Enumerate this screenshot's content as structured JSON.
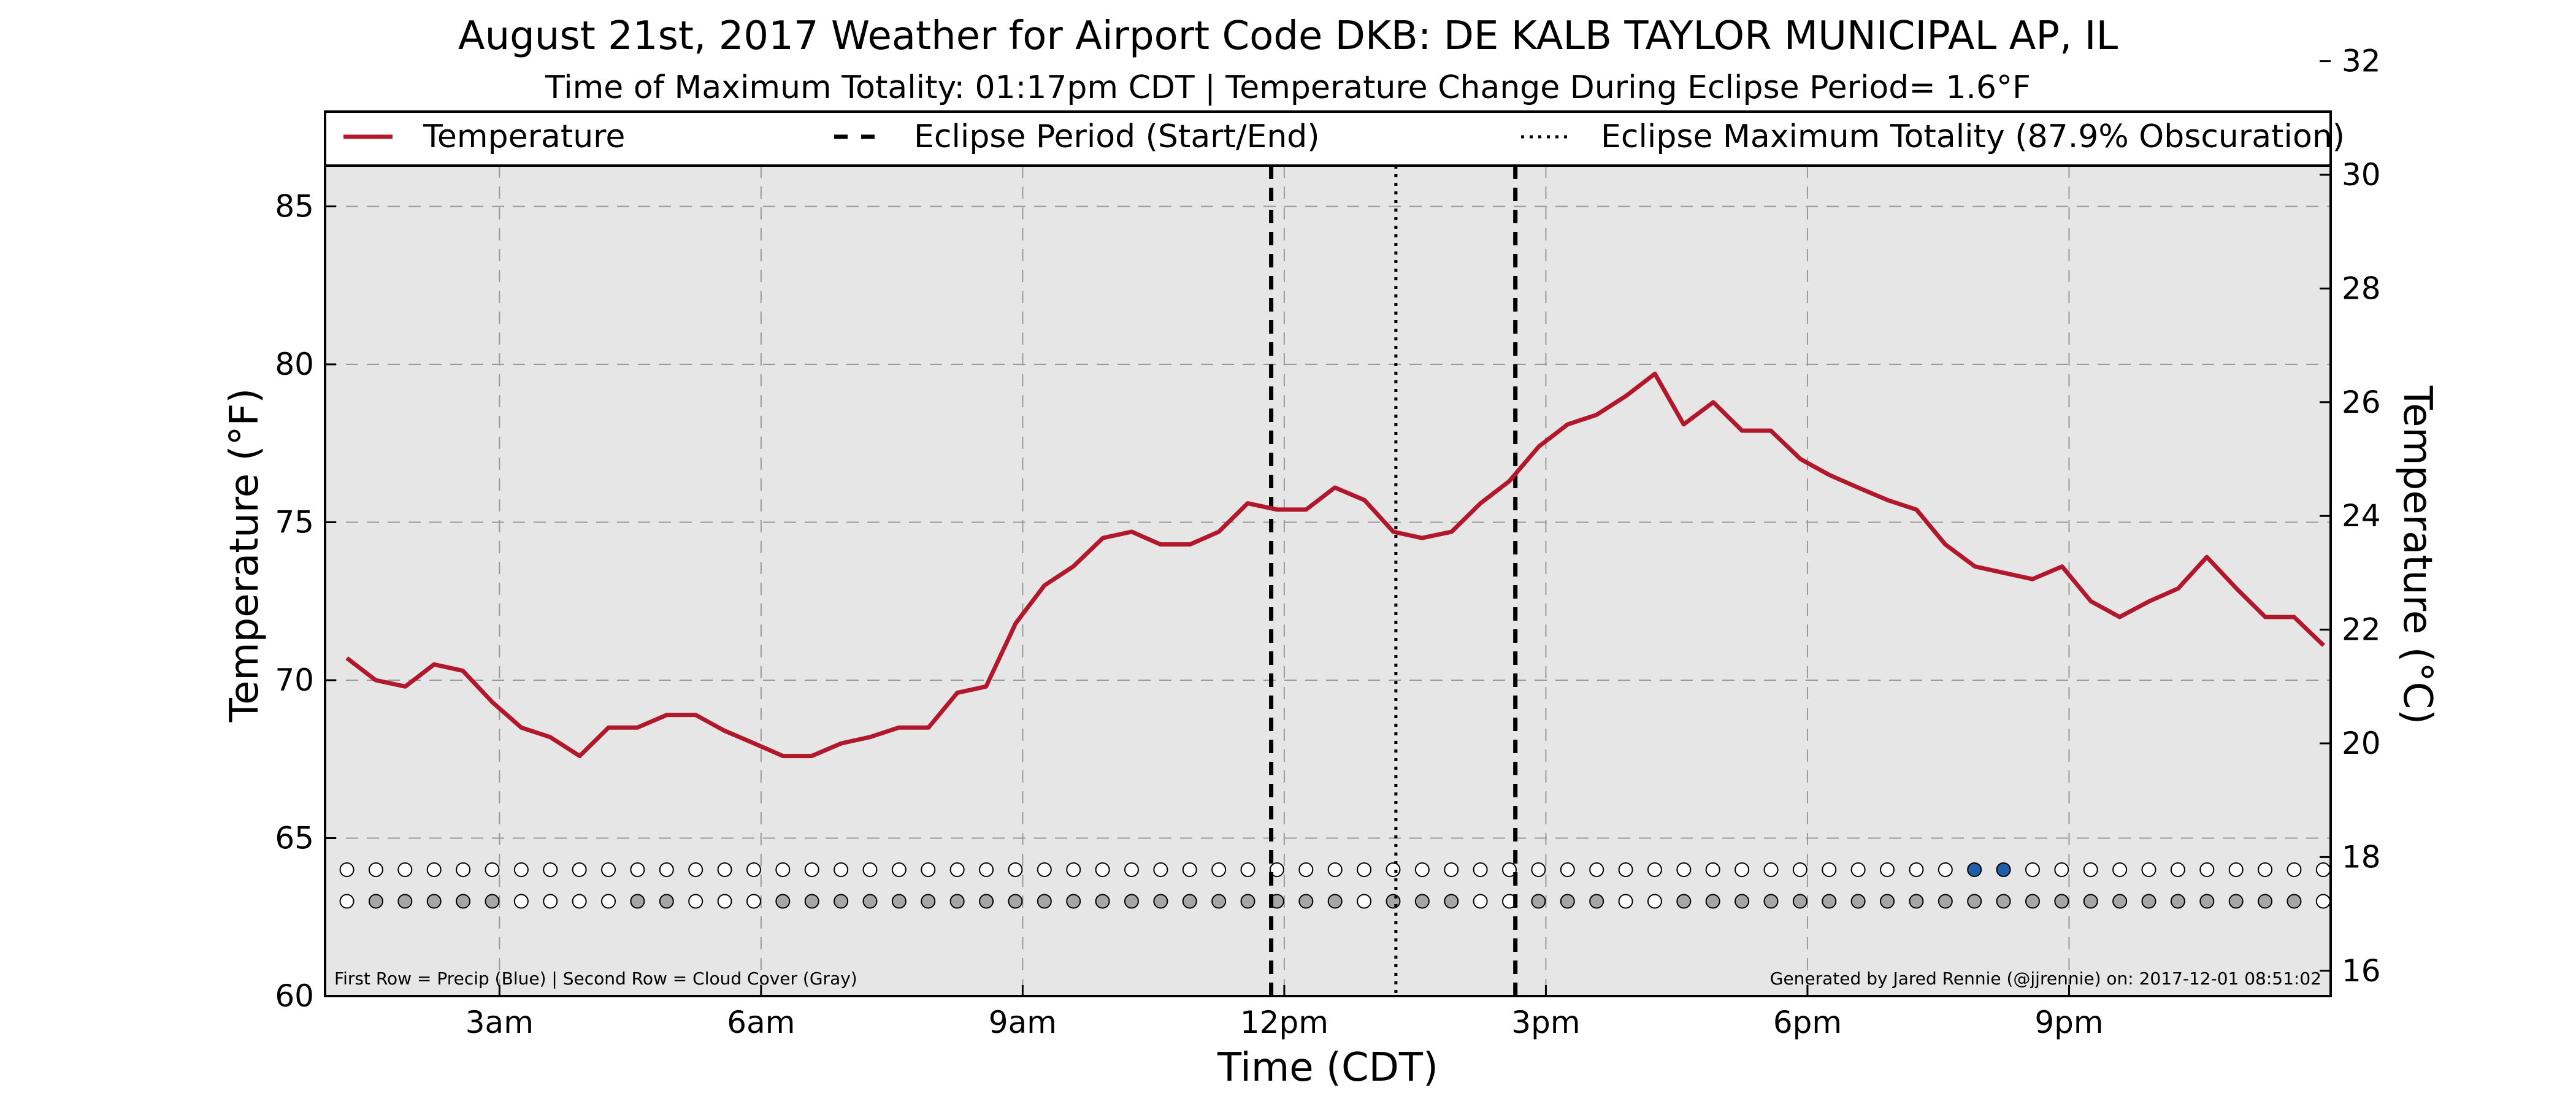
{
  "chart_data": {
    "type": "line",
    "title": "August 21st, 2017 Weather for Airport Code DKB: DE KALB TAYLOR MUNICIPAL AP, IL",
    "subtitle": "Time of Maximum Totality: 01:17pm CDT | Temperature Change During Eclipse Period= 1.6$^\\circ$F",
    "subtitle_display": "Time of Maximum Totality: 01:17pm CDT | Temperature Change During Eclipse Period= 1.6°F",
    "xlabel": "Time (CDT)",
    "ylabel": "Temperature ($^\\circ$F)",
    "ylabel_display": "Temperature (°F)",
    "y2label_display": "Temperature (°C)",
    "xlim": [
      1.0,
      24.0
    ],
    "ylim": [
      60,
      88
    ],
    "y2lim": [
      15.5556,
      31.1111
    ],
    "x_ticks": [
      3,
      6,
      9,
      12,
      15,
      18,
      21
    ],
    "x_tick_labels": [
      "3am",
      "6am",
      "9am",
      "12pm",
      "3pm",
      "6pm",
      "9pm"
    ],
    "y_ticks": [
      60,
      65,
      70,
      75,
      80,
      85
    ],
    "y_tick_labels": [
      "60",
      "65",
      "70",
      "75",
      "80",
      "85"
    ],
    "y2_ticks": [
      16,
      18,
      20,
      22,
      24,
      26,
      28,
      30,
      32
    ],
    "y2_tick_labels": [
      "16",
      "18",
      "20",
      "22",
      "24",
      "26",
      "28",
      "30",
      "32"
    ],
    "grid": true,
    "legend": [
      {
        "label": "Temperature",
        "style": "solid",
        "color": "#b2182b"
      },
      {
        "label": "Eclipse Period (Start/End)",
        "style": "dashed",
        "color": "#000000"
      },
      {
        "label": "Eclipse Maximum Totality (87.9% Obscuration)",
        "style": "dotted",
        "color": "#000000"
      }
    ],
    "legend_placement": "top",
    "series": [
      {
        "name": "Temperature",
        "color": "#b2182b",
        "x": [
          1.25,
          1.58,
          1.92,
          2.25,
          2.58,
          2.92,
          3.25,
          3.58,
          3.92,
          4.25,
          4.58,
          4.92,
          5.25,
          5.58,
          5.92,
          6.25,
          6.58,
          6.92,
          7.25,
          7.58,
          7.92,
          8.25,
          8.58,
          8.92,
          9.25,
          9.58,
          9.92,
          10.25,
          10.58,
          10.92,
          11.25,
          11.58,
          11.92,
          12.25,
          12.58,
          12.92,
          13.25,
          13.58,
          13.92,
          14.25,
          14.58,
          14.92,
          15.25,
          15.58,
          15.92,
          16.25,
          16.58,
          16.92,
          17.25,
          17.58,
          17.92,
          18.25,
          18.58,
          18.92,
          19.25,
          19.58,
          19.92,
          20.25,
          20.58,
          20.92,
          21.25,
          21.58,
          21.92,
          22.25,
          22.58,
          22.92,
          23.25,
          23.58,
          23.92
        ],
        "y": [
          70.7,
          70.0,
          69.8,
          70.5,
          70.3,
          69.3,
          68.5,
          68.2,
          67.6,
          68.5,
          68.5,
          68.9,
          68.9,
          68.4,
          68.0,
          67.6,
          67.6,
          68.0,
          68.2,
          68.5,
          68.5,
          69.6,
          69.8,
          71.8,
          73.0,
          73.6,
          74.5,
          74.7,
          74.3,
          74.3,
          74.7,
          75.6,
          75.4,
          75.4,
          76.1,
          75.7,
          74.7,
          74.5,
          74.7,
          75.6,
          76.3,
          77.4,
          78.1,
          78.4,
          79.0,
          79.7,
          78.1,
          78.8,
          77.9,
          77.9,
          77.0,
          76.5,
          76.1,
          75.7,
          75.4,
          74.3,
          73.6,
          73.4,
          73.2,
          73.6,
          72.5,
          72.0,
          72.5,
          72.9,
          73.9,
          72.9,
          72.0,
          72.0,
          71.1
        ]
      }
    ],
    "vertical_lines": [
      {
        "name": "Eclipse start",
        "x": 11.85,
        "style": "dashed"
      },
      {
        "name": "Eclipse maximum totality",
        "x": 13.28,
        "style": "dotted"
      },
      {
        "name": "Eclipse end",
        "x": 14.65,
        "style": "dashed"
      }
    ],
    "marker_rows": {
      "x_start": 1.25,
      "x_step": 0.3333,
      "precip": {
        "y": 64.0,
        "colors": [
          "#ffffff",
          "#ffffff",
          "#ffffff",
          "#ffffff",
          "#ffffff",
          "#ffffff",
          "#ffffff",
          "#ffffff",
          "#ffffff",
          "#ffffff",
          "#ffffff",
          "#ffffff",
          "#ffffff",
          "#ffffff",
          "#ffffff",
          "#ffffff",
          "#ffffff",
          "#ffffff",
          "#ffffff",
          "#ffffff",
          "#ffffff",
          "#ffffff",
          "#ffffff",
          "#ffffff",
          "#ffffff",
          "#ffffff",
          "#ffffff",
          "#ffffff",
          "#ffffff",
          "#ffffff",
          "#ffffff",
          "#ffffff",
          "#ffffff",
          "#ffffff",
          "#ffffff",
          "#ffffff",
          "#ffffff",
          "#ffffff",
          "#ffffff",
          "#ffffff",
          "#ffffff",
          "#ffffff",
          "#ffffff",
          "#ffffff",
          "#ffffff",
          "#ffffff",
          "#ffffff",
          "#ffffff",
          "#ffffff",
          "#ffffff",
          "#ffffff",
          "#ffffff",
          "#ffffff",
          "#ffffff",
          "#ffffff",
          "#ffffff",
          "#1f5ea8",
          "#1f5ea8",
          "#ffffff",
          "#ffffff",
          "#ffffff",
          "#ffffff",
          "#ffffff",
          "#ffffff",
          "#ffffff",
          "#ffffff",
          "#ffffff",
          "#ffffff",
          "#ffffff",
          "#ffffff"
        ]
      },
      "cloud": {
        "y": 63.0,
        "colors": [
          "#ffffff",
          "#a6a6a6",
          "#a6a6a6",
          "#a6a6a6",
          "#a6a6a6",
          "#a6a6a6",
          "#ffffff",
          "#ffffff",
          "#ffffff",
          "#ffffff",
          "#a6a6a6",
          "#a6a6a6",
          "#ffffff",
          "#ffffff",
          "#ffffff",
          "#a6a6a6",
          "#a6a6a6",
          "#a6a6a6",
          "#a6a6a6",
          "#a6a6a6",
          "#a6a6a6",
          "#a6a6a6",
          "#a6a6a6",
          "#a6a6a6",
          "#a6a6a6",
          "#a6a6a6",
          "#a6a6a6",
          "#a6a6a6",
          "#a6a6a6",
          "#a6a6a6",
          "#a6a6a6",
          "#a6a6a6",
          "#a6a6a6",
          "#a6a6a6",
          "#a6a6a6",
          "#ffffff",
          "#a6a6a6",
          "#a6a6a6",
          "#a6a6a6",
          "#ffffff",
          "#ffffff",
          "#a6a6a6",
          "#a6a6a6",
          "#a6a6a6",
          "#ffffff",
          "#ffffff",
          "#a6a6a6",
          "#a6a6a6",
          "#a6a6a6",
          "#a6a6a6",
          "#a6a6a6",
          "#a6a6a6",
          "#a6a6a6",
          "#a6a6a6",
          "#a6a6a6",
          "#a6a6a6",
          "#a6a6a6",
          "#a6a6a6",
          "#a6a6a6",
          "#a6a6a6",
          "#a6a6a6",
          "#a6a6a6",
          "#a6a6a6",
          "#a6a6a6",
          "#a6a6a6",
          "#a6a6a6",
          "#a6a6a6",
          "#a6a6a6",
          "#ffffff"
        ]
      }
    },
    "footnote_left": "First Row = Precip (Blue) | Second Row = Cloud Cover (Gray)",
    "footnote_right": "Generated by Jared Rennie (@jjrennie) on: 2017-12-01 08:51:02"
  },
  "colors": {
    "plot_background": "#e6e6e6",
    "temperature_line": "#b2182b",
    "precip_marker": "#1f5ea8",
    "cloud_marker": "#a6a6a6",
    "grid": "#999999"
  }
}
